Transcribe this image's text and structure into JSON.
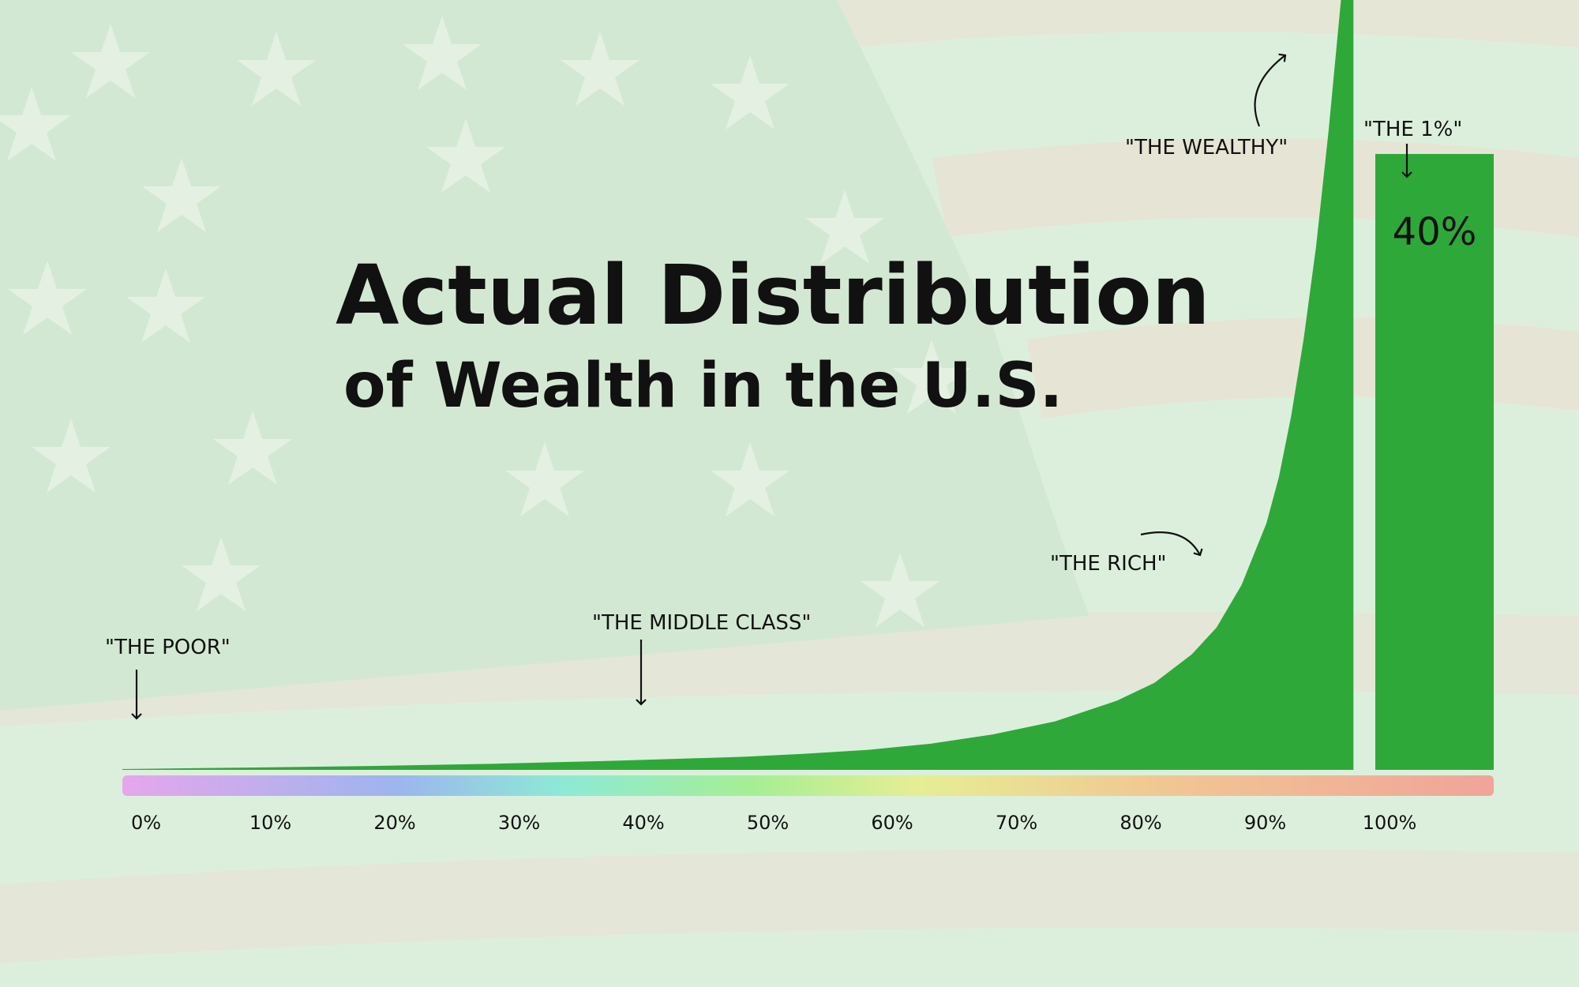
{
  "chart_data": {
    "type": "area",
    "title": "Actual Distribution",
    "subtitle": "of Wealth in the U.S.",
    "x_tick_labels": [
      "0%",
      "10%",
      "20%",
      "30%",
      "40%",
      "50%",
      "60%",
      "70%",
      "80%",
      "90%",
      "100%"
    ],
    "xlim": [
      0,
      100
    ],
    "curve": {
      "x": [
        0,
        5,
        10,
        20,
        30,
        40,
        50,
        55,
        60,
        65,
        70,
        75,
        80,
        83,
        86,
        88,
        90,
        92,
        93,
        94,
        95,
        96,
        97,
        98,
        99
      ],
      "y": [
        0.1,
        0.2,
        0.3,
        0.5,
        0.8,
        1.2,
        1.7,
        2.1,
        2.6,
        3.4,
        4.6,
        6.3,
        9.0,
        11.3,
        15.0,
        18.5,
        24.0,
        32.0,
        38.0,
        46.0,
        56.0,
        68.0,
        83.0,
        100.0,
        120.0
      ]
    },
    "top_1_percent": {
      "label": "40%",
      "value": 40
    },
    "annotations": [
      {
        "text": "\"THE POOR\"",
        "x": 0
      },
      {
        "text": "\"THE MIDDLE CLASS\"",
        "x": 41
      },
      {
        "text": "\"THE RICH\"",
        "x": 88
      },
      {
        "text": "\"THE WEALTHY\"",
        "x": 96
      },
      {
        "text": "\"THE 1%\"",
        "x": 100
      }
    ],
    "grid": false,
    "legend": "none"
  },
  "colors": {
    "area": "#2fa83a",
    "background": "#dcefdc",
    "text": "#111111",
    "gradient": [
      "#e6a6ec",
      "#9db5ee",
      "#8ee9d6",
      "#a6ee95",
      "#e6ee95",
      "#f0c893",
      "#f0a49a"
    ]
  }
}
